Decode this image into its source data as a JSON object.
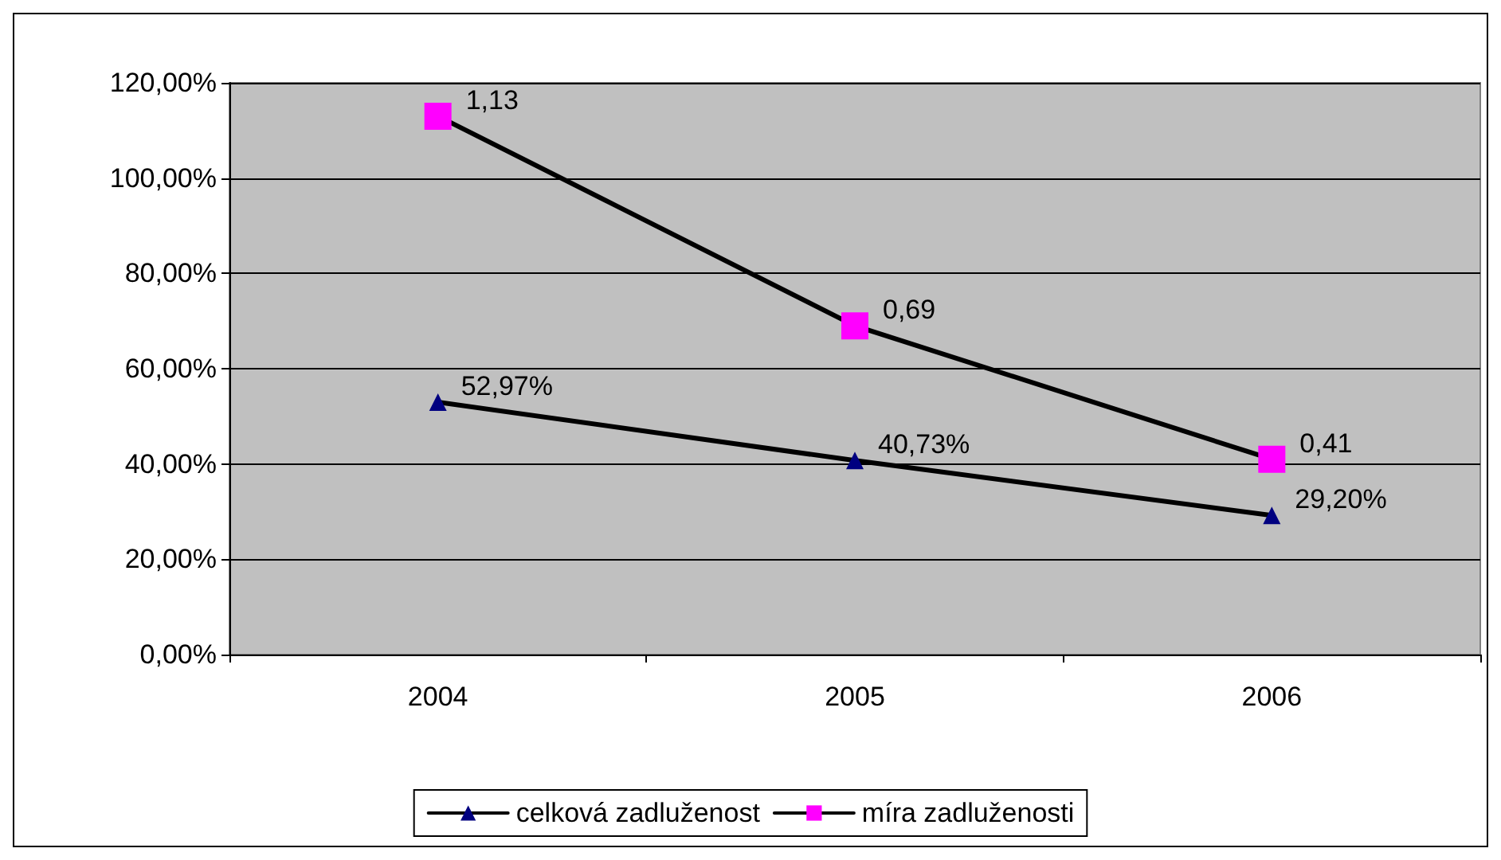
{
  "chart_data": {
    "type": "line",
    "categories": [
      "2004",
      "2005",
      "2006"
    ],
    "series": [
      {
        "name": "celková zadluženost",
        "color": "#000080",
        "marker": "triangle",
        "values": [
          0.5297,
          0.4073,
          0.292
        ],
        "value_labels": [
          "52,97%",
          "40,73%",
          "29,20%"
        ]
      },
      {
        "name": "míra zadluženosti",
        "color": "#ff00ff",
        "marker": "square",
        "values": [
          1.13,
          0.69,
          0.41
        ],
        "value_labels": [
          "1,13",
          "0,69",
          "0,41"
        ]
      }
    ],
    "ylim": [
      0,
      1.2
    ],
    "yticks": [
      {
        "value": 0,
        "label": "0,00%"
      },
      {
        "value": 0.2,
        "label": "20,00%"
      },
      {
        "value": 0.4,
        "label": "40,00%"
      },
      {
        "value": 0.6,
        "label": "60,00%"
      },
      {
        "value": 0.8,
        "label": "80,00%"
      },
      {
        "value": 1,
        "label": "100,00%"
      },
      {
        "value": 1.2,
        "label": "120,00%"
      }
    ],
    "grid": "y",
    "legend": "bottom",
    "line_style": "solid"
  }
}
